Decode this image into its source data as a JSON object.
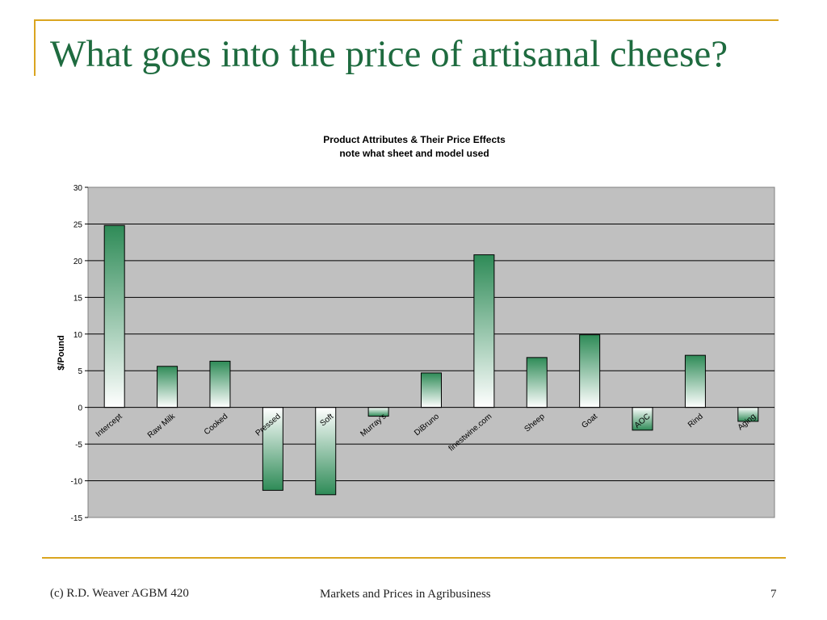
{
  "slide": {
    "title": "What goes into the price of artisanal cheese?"
  },
  "footer": {
    "left": "(c) R.D. Weaver  AGBM 420",
    "center": "Markets and Prices in Agribusiness",
    "page_number": "7"
  },
  "colors": {
    "title": "#1E6B3F",
    "accent_line": "#DAA520",
    "bar_dark": "#2E8B57",
    "plot_background": "#C0C0C0"
  },
  "chart_data": {
    "type": "bar",
    "title": "Product Attributes & Their Price Effects",
    "subtitle": "note what sheet and model used",
    "xlabel": "",
    "ylabel": "$/Pound",
    "categories": [
      "Intercept",
      "Raw Milk",
      "Cooked",
      "Pressed",
      "Soft",
      "Murray's",
      "DiBruno",
      "finestwine.com",
      "Sheep",
      "Goat",
      "AOC",
      "Rind",
      "Aging"
    ],
    "values": [
      24.8,
      5.6,
      6.3,
      -11.3,
      -11.9,
      -1.2,
      4.7,
      20.8,
      6.8,
      9.9,
      -3.1,
      7.1,
      -1.9
    ],
    "ylim": [
      -15,
      30
    ],
    "yticks": [
      30,
      25,
      20,
      15,
      10,
      5,
      0,
      -5,
      -10,
      -15
    ],
    "grid": true,
    "legend": "none"
  }
}
